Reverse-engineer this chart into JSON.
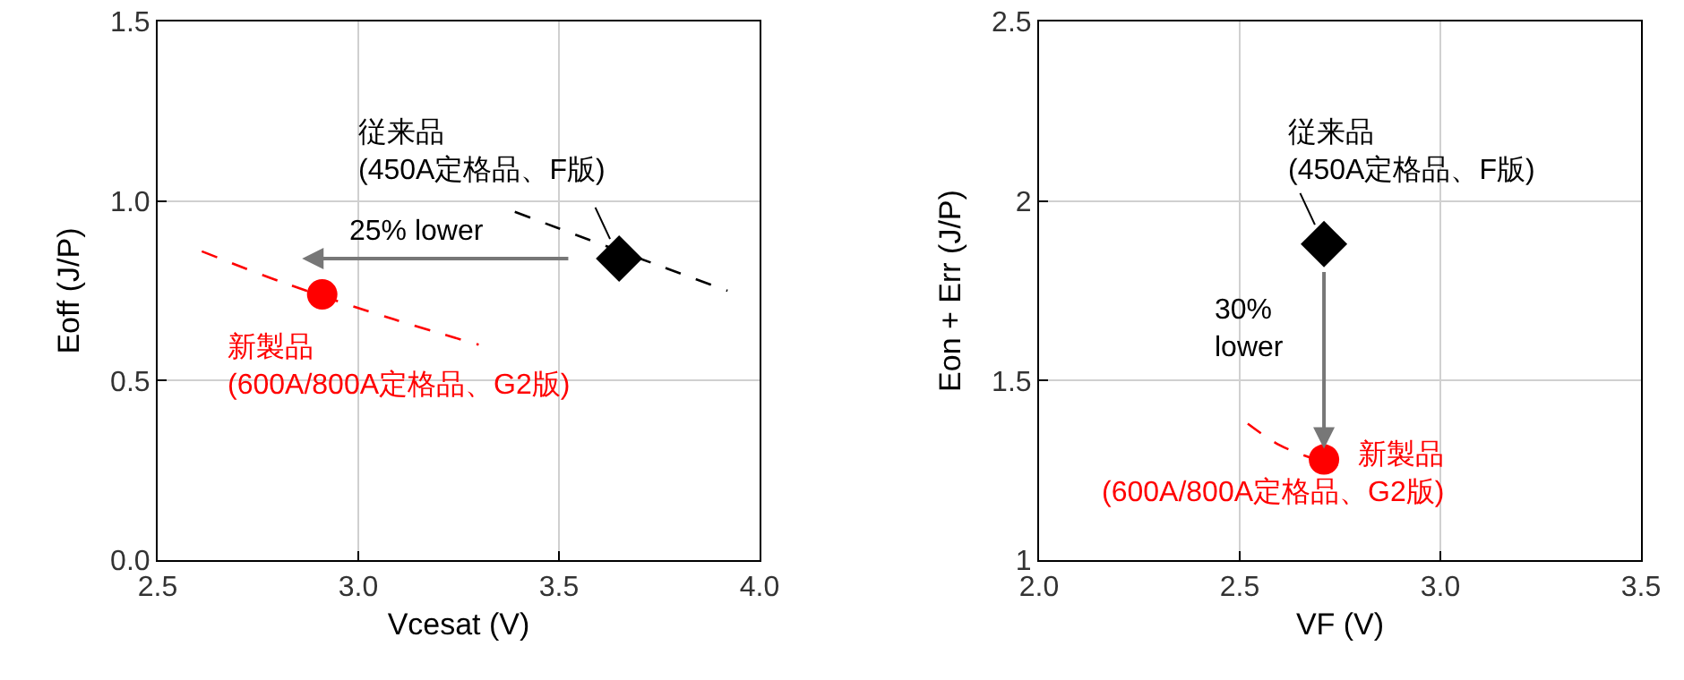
{
  "chart_data": [
    {
      "type": "scatter",
      "xlabel": "Vcesat (V)",
      "ylabel": "Eoff (J/P)",
      "xlim": [
        2.5,
        4.0
      ],
      "ylim": [
        0,
        1.5
      ],
      "xticks": [
        {
          "value": 2.5,
          "label": "2.5"
        },
        {
          "value": 3,
          "label": "3.0"
        },
        {
          "value": 3.5,
          "label": "3.5"
        },
        {
          "value": 4,
          "label": "4.0"
        }
      ],
      "yticks": [
        {
          "value": 0,
          "label": "0.0"
        },
        {
          "value": 0.5,
          "label": "0.5"
        },
        {
          "value": 1,
          "label": "1.0"
        },
        {
          "value": 1.5,
          "label": "1.5"
        }
      ],
      "grid": true,
      "series": [
        {
          "type": "line",
          "line_style": "dashed",
          "marker": "none",
          "color": "#000000",
          "x": [
            3.39,
            3.58,
            3.75,
            3.92
          ],
          "values": [
            0.97,
            0.89,
            0.82,
            0.75
          ]
        },
        {
          "type": "line",
          "line_style": "dashed",
          "marker": "none",
          "color": "#ff0000",
          "x": [
            2.61,
            2.82,
            3.09,
            3.3
          ],
          "values": [
            0.86,
            0.77,
            0.67,
            0.6
          ]
        },
        {
          "type": "scatter",
          "marker": "diamond",
          "color": "#000000",
          "x": [
            3.65
          ],
          "values": [
            0.84
          ]
        },
        {
          "type": "scatter",
          "marker": "circle",
          "color": "#ff0000",
          "x": [
            2.91
          ],
          "values": [
            0.74
          ]
        }
      ],
      "annotations": [
        "従来品\n(450A定格品、F版)",
        "新製品\n(600A/800A定格品、G2版)",
        "25% lower"
      ]
    },
    {
      "type": "scatter",
      "xlabel": "VF (V)",
      "ylabel": "Eon + Err (J/P)",
      "xlim": [
        2.0,
        3.5
      ],
      "ylim": [
        1,
        2.5
      ],
      "xticks": [
        {
          "value": 2,
          "label": "2.0"
        },
        {
          "value": 2.5,
          "label": "2.5"
        },
        {
          "value": 3,
          "label": "3.0"
        },
        {
          "value": 3.5,
          "label": "3.5"
        }
      ],
      "yticks": [
        1,
        1.5,
        2,
        2.5
      ],
      "grid": true,
      "series": [
        {
          "type": "line",
          "line_style": "dashed",
          "marker": "none",
          "color": "#ff0000",
          "x": [
            2.52,
            2.6,
            2.69
          ],
          "values": [
            1.38,
            1.32,
            1.28
          ]
        },
        {
          "type": "scatter",
          "marker": "diamond",
          "color": "#000000",
          "x": [
            2.71
          ],
          "values": [
            1.88
          ]
        },
        {
          "type": "scatter",
          "marker": "circle",
          "color": "#ff0000",
          "x": [
            2.71
          ],
          "values": [
            1.28
          ]
        }
      ],
      "annotations": [
        "従来品\n(450A定格品、F版)",
        "新製品\n(600A/800A定格品、G2版)",
        "30%\nlower"
      ]
    }
  ]
}
